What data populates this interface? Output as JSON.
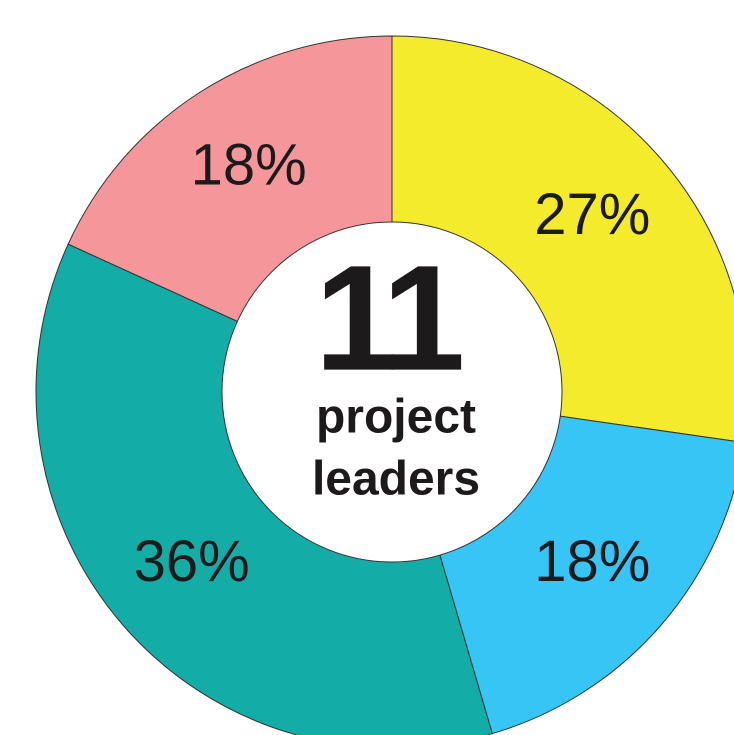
{
  "chart_data": {
    "type": "donut",
    "values": [
      27,
      18,
      36,
      18
    ],
    "value_labels": [
      "27%",
      "18%",
      "36%",
      "18%"
    ],
    "colors": [
      "#f3eb2c",
      "#36c5f4",
      "#14aca6",
      "#f5979a"
    ],
    "center_value": "11",
    "center_label": [
      "project",
      "leaders"
    ]
  }
}
